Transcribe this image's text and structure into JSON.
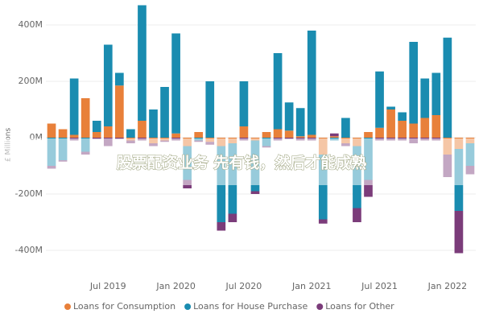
{
  "chart_data": {
    "type": "stacked_bar",
    "y_axis_label": "£ Millions",
    "annotation": "股票配资业务 先有钱，然后才能成熟",
    "categories": [
      null,
      null,
      null,
      null,
      null,
      "Jul 2019",
      null,
      null,
      null,
      null,
      null,
      "Jan 2020",
      null,
      null,
      null,
      null,
      null,
      "Jul 2020",
      null,
      null,
      null,
      null,
      null,
      "Jan 2021",
      null,
      null,
      null,
      null,
      null,
      "Jul 2021",
      null,
      null,
      null,
      null,
      null,
      "Jan 2022",
      null,
      null
    ],
    "series": [
      {
        "name": "Loans for Consumption",
        "color": "#e8803a",
        "values": [
          50,
          30,
          10,
          140,
          20,
          40,
          185,
          -10,
          60,
          -20,
          -10,
          15,
          -30,
          20,
          -15,
          -30,
          -20,
          40,
          -10,
          20,
          30,
          25,
          5,
          10,
          -60,
          5,
          -20,
          -30,
          20,
          35,
          100,
          60,
          50,
          70,
          80,
          -60,
          -40,
          -20
        ]
      },
      {
        "name": "Loans for House Purchase",
        "color": "#1a8cb0",
        "values": [
          -100,
          -80,
          200,
          -50,
          40,
          290,
          45,
          30,
          410,
          100,
          180,
          355,
          -120,
          -10,
          200,
          -270,
          -250,
          160,
          -180,
          -30,
          270,
          100,
          100,
          370,
          -230,
          -10,
          70,
          -220,
          -150,
          200,
          10,
          30,
          290,
          140,
          150,
          355,
          -220,
          -80
        ]
      },
      {
        "name": "Loans for Other",
        "color": "#7b3c7a",
        "values": [
          -10,
          -5,
          -10,
          -10,
          -5,
          -30,
          -5,
          -10,
          -10,
          -10,
          -5,
          -10,
          -30,
          -5,
          -10,
          -30,
          -30,
          -10,
          -10,
          -5,
          -10,
          -5,
          -10,
          -10,
          -15,
          10,
          -10,
          -50,
          -60,
          -10,
          -10,
          -10,
          -20,
          -10,
          -10,
          -80,
          -150,
          -30
        ]
      }
    ],
    "ylim": [
      -460,
      480
    ],
    "yticks": [
      {
        "value": -400,
        "label": "-400M"
      },
      {
        "value": -200,
        "label": "-200M"
      },
      {
        "value": 0,
        "label": "0M"
      },
      {
        "value": 200,
        "label": "200M"
      },
      {
        "value": 400,
        "label": "400M"
      }
    ],
    "grid": true
  }
}
